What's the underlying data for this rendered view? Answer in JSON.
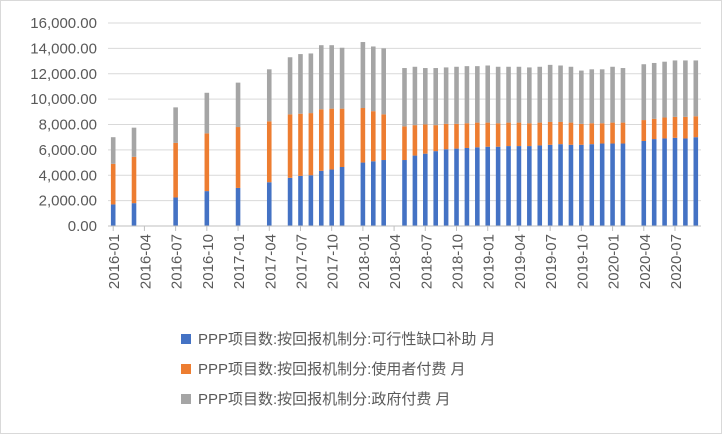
{
  "chart_data": {
    "type": "bar",
    "stacked": true,
    "title": "",
    "xlabel": "",
    "ylabel": "",
    "ylim": [
      0,
      16000
    ],
    "yticks": [
      "0.00",
      "2,000.00",
      "4,000.00",
      "6,000.00",
      "8,000.00",
      "10,000.00",
      "12,000.00",
      "14,000.00",
      "16,000.00"
    ],
    "xtick_labels": [
      "2016-01",
      "2016-04",
      "2016-07",
      "2016-10",
      "2017-01",
      "2017-04",
      "2017-07",
      "2017-10",
      "2018-01",
      "2018-04",
      "2018-07",
      "2018-10",
      "2019-01",
      "2019-04",
      "2019-07",
      "2019-10",
      "2020-01",
      "2020-04",
      "2020-07"
    ],
    "grid": "horizontal",
    "legend_position": "bottom",
    "categories": [
      "2016-01",
      "2016-02",
      "2016-03",
      "2016-04",
      "2016-05",
      "2016-06",
      "2016-07",
      "2016-08",
      "2016-09",
      "2016-10",
      "2016-11",
      "2016-12",
      "2017-01",
      "2017-02",
      "2017-03",
      "2017-04",
      "2017-05",
      "2017-06",
      "2017-07",
      "2017-08",
      "2017-09",
      "2017-10",
      "2017-11",
      "2017-12",
      "2018-01",
      "2018-02",
      "2018-03",
      "2018-04",
      "2018-05",
      "2018-06",
      "2018-07",
      "2018-08",
      "2018-09",
      "2018-10",
      "2018-11",
      "2018-12",
      "2019-01",
      "2019-02",
      "2019-03",
      "2019-04",
      "2019-05",
      "2019-06",
      "2019-07",
      "2019-08",
      "2019-09",
      "2019-10",
      "2019-11",
      "2019-12",
      "2020-01",
      "2020-02",
      "2020-03",
      "2020-04",
      "2020-05",
      "2020-06",
      "2020-07",
      "2020-08",
      "2020-09"
    ],
    "series": [
      {
        "name": "PPP项目数:按回报机制分:可行性缺口补助 月",
        "color": "#4472c4",
        "values": [
          1700,
          null,
          1800,
          null,
          null,
          null,
          2250,
          null,
          null,
          2750,
          null,
          null,
          3000,
          null,
          null,
          3450,
          null,
          3800,
          3950,
          4000,
          4350,
          4450,
          4650,
          null,
          5000,
          5100,
          5200,
          null,
          5200,
          5550,
          5700,
          5900,
          6050,
          6100,
          6150,
          6200,
          6250,
          6250,
          6300,
          6300,
          6300,
          6350,
          6400,
          6450,
          6400,
          6400,
          6450,
          6500,
          6500,
          6500,
          null,
          6700,
          6850,
          6900,
          6950,
          6900,
          7000
        ]
      },
      {
        "name": "PPP项目数:按回报机制分:使用者付费 月",
        "color": "#ed7d31",
        "values": [
          3200,
          null,
          3650,
          null,
          null,
          null,
          4300,
          null,
          null,
          4550,
          null,
          null,
          4800,
          null,
          null,
          4800,
          null,
          5000,
          4900,
          4900,
          4850,
          4800,
          4600,
          null,
          4300,
          3950,
          3600,
          null,
          2650,
          2400,
          2300,
          2050,
          2000,
          1950,
          1950,
          1950,
          1900,
          1850,
          1850,
          1850,
          1800,
          1800,
          1800,
          1750,
          1750,
          1650,
          1650,
          1600,
          1650,
          1650,
          null,
          1650,
          1600,
          1650,
          1650,
          1700,
          1650
        ]
      },
      {
        "name": "PPP项目数:按回报机制分:政府付费 月",
        "color": "#a5a5a5",
        "values": [
          2100,
          null,
          2300,
          null,
          null,
          null,
          2800,
          null,
          null,
          3200,
          null,
          null,
          3500,
          null,
          null,
          4100,
          null,
          4500,
          4700,
          4700,
          5050,
          5000,
          4800,
          null,
          5200,
          5100,
          5200,
          null,
          4600,
          4600,
          4450,
          4500,
          4450,
          4500,
          4500,
          4450,
          4500,
          4450,
          4400,
          4400,
          4400,
          4400,
          4500,
          4450,
          4400,
          4200,
          4250,
          4250,
          4400,
          4300,
          null,
          4400,
          4400,
          4400,
          4450,
          4450,
          4400
        ]
      }
    ]
  }
}
